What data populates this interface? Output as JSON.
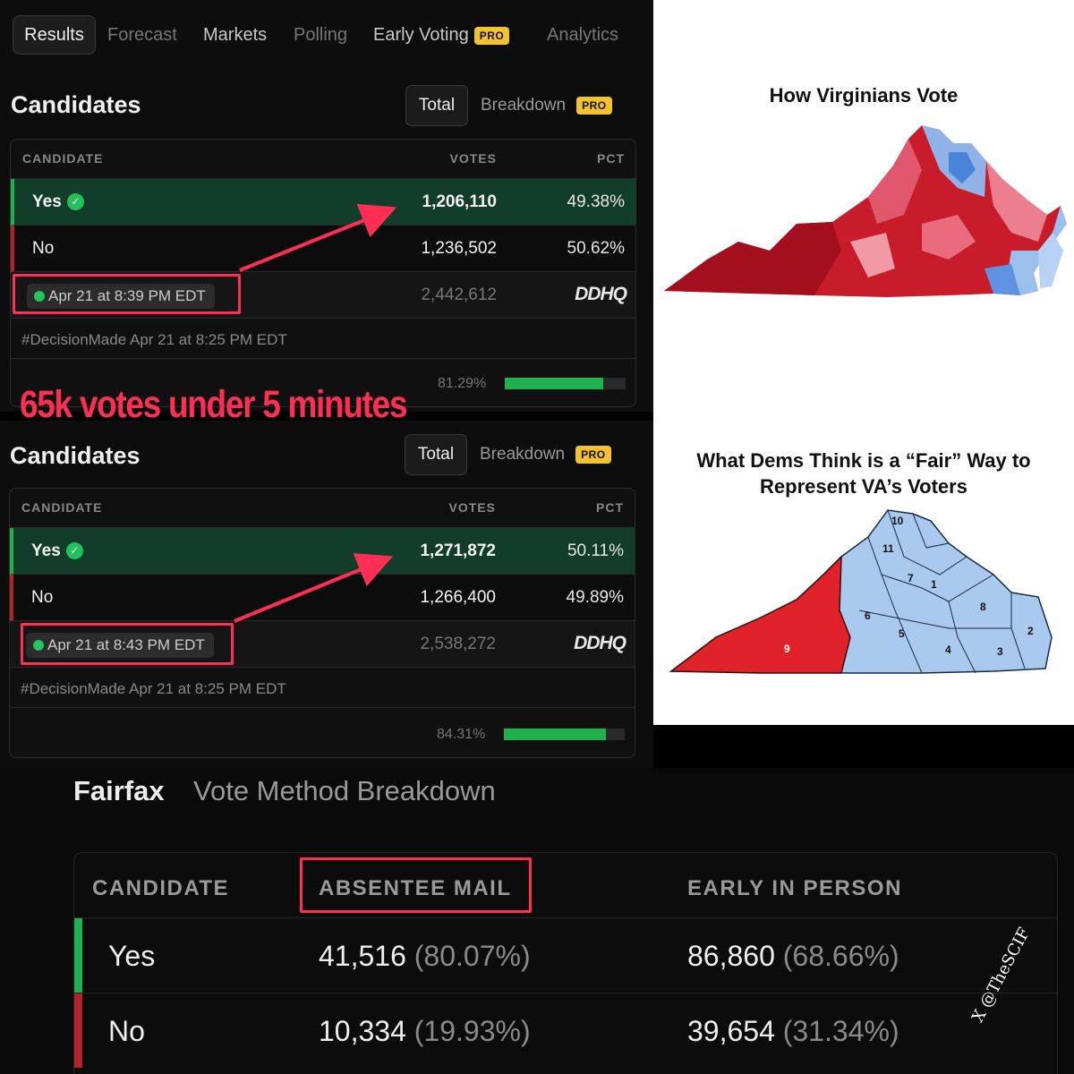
{
  "nav": {
    "tabs": [
      {
        "label": "Results"
      },
      {
        "label": "Forecast"
      },
      {
        "label": "Markets"
      },
      {
        "label": "Polling"
      },
      {
        "label": "Early Voting"
      },
      {
        "label": "Analytics"
      }
    ],
    "pro_badge": "PRO"
  },
  "panels": [
    {
      "title": "Candidates",
      "toggle_total": "Total",
      "toggle_breakdown": "Breakdown",
      "pro_badge": "PRO",
      "headers": {
        "candidate": "CANDIDATE",
        "votes": "VOTES",
        "pct": "PCT"
      },
      "rows": [
        {
          "name": "Yes",
          "votes": "1,206,110",
          "pct": "49.38%"
        },
        {
          "name": "No",
          "votes": "1,236,502",
          "pct": "50.62%"
        }
      ],
      "timestamp": "Apr 21 at 8:39 PM EDT",
      "total_votes": "2,442,612",
      "source_logo": "DDHQ",
      "decision_tag": "#DecisionMade",
      "decision_time": "Apr 21 at 8:25 PM EDT",
      "reporting_label": "81.29%",
      "reporting_fraction": 0.8129
    },
    {
      "title": "Candidates",
      "toggle_total": "Total",
      "toggle_breakdown": "Breakdown",
      "pro_badge": "PRO",
      "headers": {
        "candidate": "CANDIDATE",
        "votes": "VOTES",
        "pct": "PCT"
      },
      "rows": [
        {
          "name": "Yes",
          "votes": "1,271,872",
          "pct": "50.11%"
        },
        {
          "name": "No",
          "votes": "1,266,400",
          "pct": "49.89%"
        }
      ],
      "timestamp": "Apr 21 at 8:43 PM EDT",
      "total_votes": "2,538,272",
      "source_logo": "DDHQ",
      "decision_tag": "#DecisionMade",
      "decision_time": "Apr 21 at 8:25 PM EDT",
      "reporting_label": "84.31%",
      "reporting_fraction": 0.8431
    }
  ],
  "annotation": "65k votes under 5 minutes",
  "map1": {
    "title": "How Virginians Vote"
  },
  "map2": {
    "title_line1": "What Dems Think is a “Fair” Way to",
    "title_line2": "Represent VA’s Voters",
    "district_labels": [
      "10",
      "11",
      "7",
      "1",
      "6",
      "8",
      "5",
      "4",
      "3",
      "2",
      "9"
    ]
  },
  "fairfax": {
    "county": "Fairfax",
    "subtitle": "Vote Method Breakdown",
    "headers": [
      "CANDIDATE",
      "ABSENTEE MAIL",
      "EARLY IN PERSON"
    ],
    "rows": [
      {
        "name": "Yes",
        "absentee": "41,516",
        "absentee_pct": "(80.07%)",
        "early": "86,860",
        "early_pct": "(68.66%)"
      },
      {
        "name": "No",
        "absentee": "10,334",
        "absentee_pct": "(19.93%)",
        "early": "39,654",
        "early_pct": "(31.34%)"
      }
    ]
  },
  "watermark": "X @TheSCIF",
  "colors": {
    "annotation": "#ff2e55",
    "yes": "#1fb14f",
    "no": "#b3232a",
    "pro": "#f2c230",
    "map_red": "#d8232a",
    "map_blue": "#a9c9ee"
  }
}
